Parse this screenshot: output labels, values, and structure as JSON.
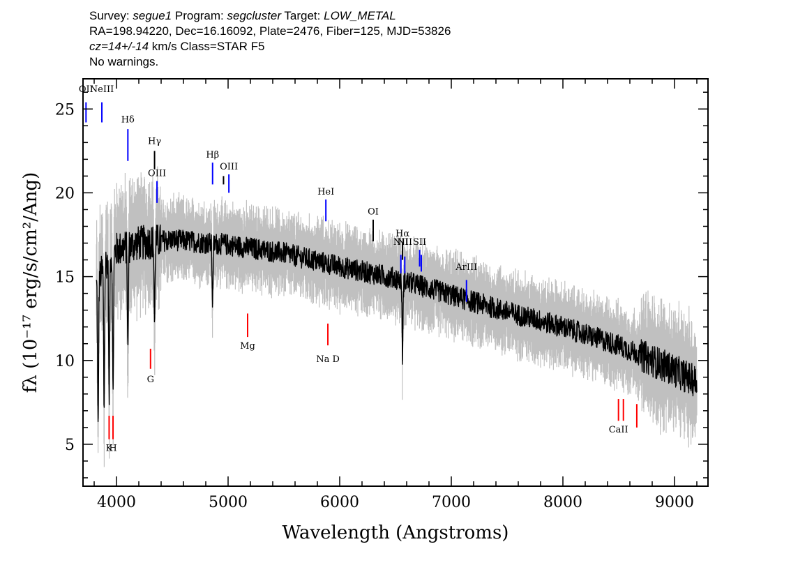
{
  "header": {
    "line1_prefix": "Survey: ",
    "survey": "segue1",
    "program_prefix": " Program: ",
    "program": "segcluster",
    "target_prefix": " Target: ",
    "target": "LOW_METAL",
    "line2": "RA=198.94220, Dec=16.16092, Plate=2476, Fiber=125, MJD=53826",
    "line3_z": "cz=14+/-14",
    "line3_rest": " km/s Class=STAR F5",
    "line4": "No warnings."
  },
  "chart_data": {
    "type": "line",
    "xlabel": "Wavelength (Angstroms)",
    "ylabel": "fλ (10⁻¹⁷ erg/s/cm²/Ang)",
    "xlim": [
      3700,
      9300
    ],
    "ylim": [
      2.5,
      26.8
    ],
    "grid": false,
    "x_ticks": [
      4000,
      5000,
      6000,
      7000,
      8000,
      9000
    ],
    "y_ticks": [
      5,
      10,
      15,
      20,
      25
    ],
    "continuum": [
      [
        3820,
        14.5
      ],
      [
        3900,
        15.8
      ],
      [
        4000,
        16.6
      ],
      [
        4200,
        17.0
      ],
      [
        4500,
        17.2
      ],
      [
        5000,
        16.9
      ],
      [
        5500,
        16.4
      ],
      [
        6000,
        15.6
      ],
      [
        6500,
        14.9
      ],
      [
        7000,
        13.9
      ],
      [
        7500,
        12.9
      ],
      [
        8000,
        12.0
      ],
      [
        8500,
        10.9
      ],
      [
        9000,
        9.4
      ],
      [
        9200,
        8.7
      ]
    ],
    "absorption_features": [
      {
        "wavelength": 3835,
        "depth": 9.0
      },
      {
        "wavelength": 3889,
        "depth": 8.5
      },
      {
        "wavelength": 3934,
        "depth": 8.5
      },
      {
        "wavelength": 3969,
        "depth": 8.5
      },
      {
        "wavelength": 4102,
        "depth": 6.5
      },
      {
        "wavelength": 4341,
        "depth": 5.0
      },
      {
        "wavelength": 4861,
        "depth": 3.5
      },
      {
        "wavelength": 6563,
        "depth": 4.5
      }
    ],
    "emission_lines": [
      {
        "label": "OII",
        "wavelength": 3727,
        "y0": 24.2,
        "y1": 25.4,
        "label_y": 26.0,
        "color": "#0000ff"
      },
      {
        "label": "NeIII",
        "wavelength": 3869,
        "y0": 24.2,
        "y1": 25.4,
        "label_y": 26.0,
        "color": "#0000ff"
      },
      {
        "label": "Hδ",
        "wavelength": 4102,
        "y0": 21.9,
        "y1": 23.8,
        "label_y": 24.2,
        "color": "#0000ff"
      },
      {
        "label": "Hγ",
        "wavelength": 4341,
        "y0": 21.4,
        "y1": 22.5,
        "label_y": 22.9,
        "color": "#000000"
      },
      {
        "label": "OIII",
        "wavelength": 4363,
        "y0": 19.4,
        "y1": 20.7,
        "label_y": 21.0,
        "color": "#0000ff"
      },
      {
        "label": "Hβ",
        "wavelength": 4861,
        "y0": 20.5,
        "y1": 21.8,
        "label_y": 22.1,
        "color": "#0000ff"
      },
      {
        "label": "",
        "wavelength": 4959,
        "y0": 20.5,
        "y1": 21.0,
        "label_y": 21.2,
        "color": "#000000"
      },
      {
        "label": "OIII",
        "wavelength": 5007,
        "y0": 20.0,
        "y1": 21.1,
        "label_y": 21.4,
        "color": "#0000ff"
      },
      {
        "label": "HeI",
        "wavelength": 5876,
        "y0": 18.3,
        "y1": 19.6,
        "label_y": 19.9,
        "color": "#0000ff"
      },
      {
        "label": "OI",
        "wavelength": 6300,
        "y0": 17.1,
        "y1": 18.4,
        "label_y": 18.7,
        "color": "#000000"
      },
      {
        "label": "NII",
        "wavelength": 6548,
        "y0": 15.2,
        "y1": 16.3,
        "label_y": 16.9,
        "color": "#0000ff"
      },
      {
        "label": "Hα",
        "wavelength": 6563,
        "y0": 16.0,
        "y1": 17.0,
        "label_y": 17.4,
        "color": "#000000"
      },
      {
        "label": "NII",
        "wavelength": 6583,
        "y0": 15.2,
        "y1": 16.2,
        "label_y": 16.9,
        "color": "#0000ff"
      },
      {
        "label": "SII",
        "wavelength": 6716,
        "y0": 15.6,
        "y1": 16.6,
        "label_y": 16.9,
        "color": "#0000ff"
      },
      {
        "label": "",
        "wavelength": 6731,
        "y0": 15.3,
        "y1": 16.3,
        "label_y": 16.6,
        "color": "#0000ff"
      },
      {
        "label": "ArIII",
        "wavelength": 7136,
        "y0": 13.5,
        "y1": 14.8,
        "label_y": 15.4,
        "color": "#0000ff"
      }
    ],
    "absorption_markers": [
      {
        "label": "K",
        "wavelength": 3934,
        "y0": 5.3,
        "y1": 6.7,
        "label_y": 4.6,
        "color": "#ff0000"
      },
      {
        "label": "H",
        "wavelength": 3969,
        "y0": 5.3,
        "y1": 6.7,
        "label_y": 4.6,
        "color": "#ff0000"
      },
      {
        "label": "G",
        "wavelength": 4305,
        "y0": 9.5,
        "y1": 10.7,
        "label_y": 8.7,
        "color": "#ff0000"
      },
      {
        "label": "Mg",
        "wavelength": 5175,
        "y0": 11.4,
        "y1": 12.8,
        "label_y": 10.7,
        "color": "#ff0000"
      },
      {
        "label": "Na D",
        "wavelength": 5894,
        "y0": 10.9,
        "y1": 12.2,
        "label_y": 9.9,
        "color": "#ff0000"
      },
      {
        "label": "CaII",
        "wavelength": 8498,
        "y0": 6.4,
        "y1": 7.7,
        "label_y": 5.7,
        "color": "#ff0000"
      },
      {
        "label": "",
        "wavelength": 8542,
        "y0": 6.4,
        "y1": 7.7,
        "label_y": 5.7,
        "color": "#ff0000"
      },
      {
        "label": "",
        "wavelength": 8662,
        "y0": 6.0,
        "y1": 7.4,
        "label_y": 5.7,
        "color": "#ff0000"
      }
    ],
    "colors": {
      "flux": "#000000",
      "error_band": "#c0c0c0",
      "emission": "#0000ff",
      "absorption": "#ff0000",
      "neutral_marker": "#000000"
    }
  }
}
